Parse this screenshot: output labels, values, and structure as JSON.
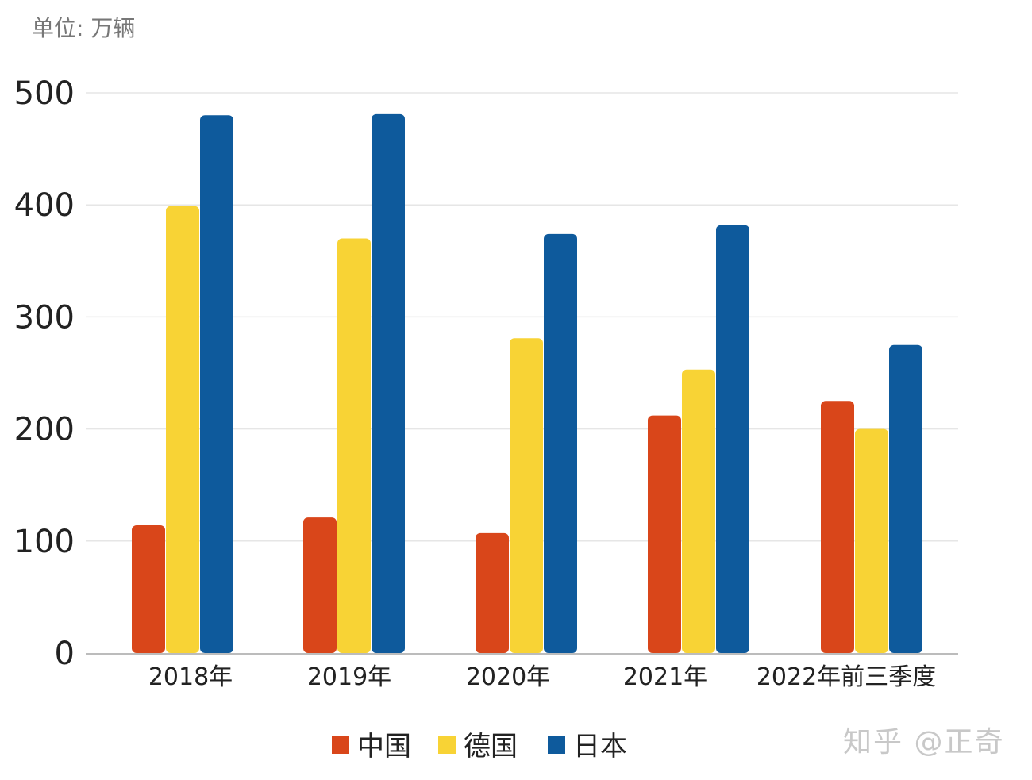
{
  "unit_label": "单位: 万辆",
  "watermark": "知乎 @正奇",
  "colors": {
    "china": "#d9461a",
    "germany": "#f8d335",
    "japan": "#0e5a9c",
    "grid": "#e6e6e6",
    "axis": "#bcbcbc",
    "text": "#222222"
  },
  "chart_data": {
    "type": "bar",
    "title": "",
    "xlabel": "",
    "ylabel": "",
    "ylim": [
      0,
      500
    ],
    "yticks": [
      0,
      100,
      200,
      300,
      400,
      500
    ],
    "categories": [
      "2018年",
      "2019年",
      "2020年",
      "2021年",
      "2022年前三季度"
    ],
    "series": [
      {
        "name": "中国",
        "color": "#d9461a",
        "values": [
          114,
          121,
          107,
          212,
          225
        ]
      },
      {
        "name": "德国",
        "color": "#f8d335",
        "values": [
          399,
          370,
          281,
          253,
          200
        ]
      },
      {
        "name": "日本",
        "color": "#0e5a9c",
        "values": [
          480,
          481,
          374,
          382,
          275
        ]
      }
    ],
    "grid": true,
    "legend": "bottom-center"
  }
}
